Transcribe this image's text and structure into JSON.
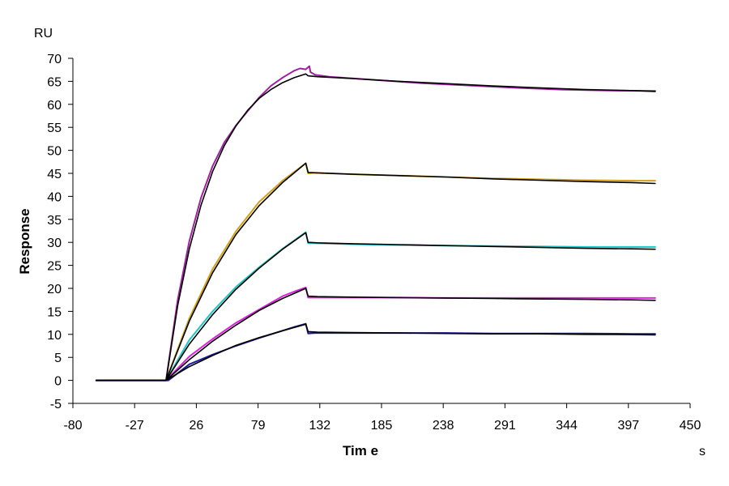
{
  "chart_data": {
    "type": "line",
    "title": "",
    "xlabel": "Tim e",
    "ylabel": "Response",
    "x_unit": "s",
    "y_unit": "RU",
    "xlim": [
      -80,
      450
    ],
    "ylim": [
      -5,
      70
    ],
    "x_ticks": [
      -80,
      -27,
      26,
      79,
      132,
      185,
      238,
      291,
      344,
      397,
      450
    ],
    "y_ticks": [
      -5,
      0,
      5,
      10,
      15,
      20,
      25,
      30,
      35,
      40,
      45,
      50,
      55,
      60,
      65,
      70
    ],
    "grid": false,
    "legend": "none",
    "series": [
      {
        "role": "measured",
        "color": "#a020a0",
        "x": [
          -60,
          -20,
          0,
          10,
          20,
          30,
          40,
          50,
          60,
          70,
          80,
          90,
          100,
          110,
          115,
          120,
          123,
          124,
          128,
          140,
          180,
          220,
          260,
          300,
          340,
          380,
          420
        ],
        "y": [
          0,
          0,
          0,
          17.5,
          30.3,
          39.7,
          46.6,
          51.7,
          55.4,
          58.5,
          61.5,
          64.0,
          65.8,
          67.3,
          67.8,
          67.6,
          68.3,
          67.0,
          66.4,
          66.0,
          65.3,
          64.6,
          64.1,
          63.6,
          63.2,
          63.0,
          62.9
        ]
      },
      {
        "role": "measured",
        "color": "#d4a017",
        "x": [
          -60,
          -20,
          0,
          20,
          40,
          60,
          80,
          100,
          110,
          120,
          122,
          128,
          160,
          200,
          240,
          280,
          320,
          360,
          400,
          420
        ],
        "y": [
          0,
          0,
          0,
          13.5,
          24.2,
          32.4,
          38.8,
          43.4,
          45.3,
          47.2,
          45.0,
          45.1,
          44.8,
          44.5,
          44.2,
          43.9,
          43.7,
          43.5,
          43.4,
          43.4
        ]
      },
      {
        "role": "measured",
        "color": "#1cc6c6",
        "x": [
          -60,
          -20,
          0,
          20,
          40,
          60,
          80,
          100,
          110,
          120,
          122,
          128,
          160,
          200,
          240,
          280,
          320,
          360,
          400,
          420
        ],
        "y": [
          0,
          0,
          0,
          8.8,
          15.0,
          20.3,
          24.6,
          28.6,
          30.4,
          32.2,
          29.8,
          29.8,
          29.6,
          29.4,
          29.3,
          29.2,
          29.1,
          29.0,
          29.0,
          29.0
        ]
      },
      {
        "role": "measured",
        "color": "#e020e0",
        "x": [
          -60,
          -20,
          0,
          20,
          40,
          60,
          80,
          100,
          110,
          120,
          122,
          128,
          160,
          200,
          240,
          280,
          320,
          360,
          400,
          420
        ],
        "y": [
          0,
          0,
          0,
          5.2,
          9.0,
          12.5,
          15.4,
          18.3,
          19.3,
          20.2,
          18.0,
          18.0,
          18.0,
          18.0,
          17.9,
          17.9,
          17.9,
          17.9,
          17.9,
          17.9
        ]
      },
      {
        "role": "measured",
        "color": "#1a1a9a",
        "x": [
          -60,
          -20,
          0,
          2,
          20,
          40,
          60,
          80,
          100,
          110,
          120,
          122,
          128,
          160,
          200,
          240,
          280,
          320,
          360,
          400,
          420
        ],
        "y": [
          0,
          0,
          0,
          0,
          3.5,
          5.6,
          7.5,
          9.2,
          10.8,
          11.6,
          12.3,
          10.2,
          10.3,
          10.3,
          10.3,
          10.3,
          10.2,
          10.2,
          10.2,
          10.1,
          10.1
        ]
      },
      {
        "role": "fit",
        "color": "#000000",
        "x": [
          -60,
          -20,
          0,
          10,
          20,
          30,
          40,
          50,
          60,
          70,
          80,
          90,
          100,
          110,
          120,
          122,
          130,
          160,
          200,
          240,
          280,
          320,
          360,
          400,
          420
        ],
        "y": [
          0,
          0,
          0,
          16.3,
          28.6,
          38.1,
          45.4,
          51.0,
          55.3,
          58.7,
          61.3,
          63.2,
          64.7,
          65.8,
          66.6,
          66.2,
          66.0,
          65.6,
          65.0,
          64.5,
          64.0,
          63.6,
          63.2,
          63.0,
          62.8
        ]
      },
      {
        "role": "fit",
        "color": "#000000",
        "x": [
          -60,
          -20,
          0,
          20,
          40,
          60,
          80,
          100,
          120,
          122,
          130,
          160,
          200,
          240,
          280,
          320,
          360,
          400,
          420
        ],
        "y": [
          0,
          0,
          0,
          12.9,
          23.4,
          31.7,
          38.0,
          43.0,
          47.2,
          45.2,
          45.1,
          44.8,
          44.5,
          44.2,
          43.8,
          43.5,
          43.2,
          43.0,
          42.8
        ]
      },
      {
        "role": "fit",
        "color": "#000000",
        "x": [
          -60,
          -20,
          0,
          20,
          40,
          60,
          80,
          100,
          120,
          122,
          130,
          160,
          200,
          240,
          280,
          320,
          360,
          400,
          420
        ],
        "y": [
          0,
          0,
          0,
          7.9,
          14.3,
          19.8,
          24.4,
          28.5,
          32.1,
          30.0,
          29.9,
          29.7,
          29.5,
          29.3,
          29.1,
          28.9,
          28.7,
          28.6,
          28.5
        ]
      },
      {
        "role": "fit",
        "color": "#000000",
        "x": [
          -60,
          -20,
          0,
          20,
          40,
          60,
          80,
          100,
          120,
          122,
          130,
          160,
          200,
          240,
          280,
          320,
          360,
          400,
          420
        ],
        "y": [
          0,
          0,
          0,
          4.5,
          8.5,
          12.0,
          15.2,
          17.8,
          20.0,
          18.3,
          18.2,
          18.1,
          18.0,
          17.9,
          17.8,
          17.7,
          17.6,
          17.5,
          17.4
        ]
      },
      {
        "role": "fit",
        "color": "#000000",
        "x": [
          -60,
          -20,
          0,
          20,
          40,
          60,
          80,
          100,
          120,
          122,
          130,
          160,
          200,
          240,
          280,
          320,
          360,
          400,
          420
        ],
        "y": [
          0,
          0,
          0,
          3.0,
          5.4,
          7.6,
          9.3,
          10.8,
          12.2,
          10.6,
          10.5,
          10.4,
          10.3,
          10.2,
          10.1,
          10.1,
          10.0,
          9.95,
          9.9
        ]
      }
    ]
  }
}
